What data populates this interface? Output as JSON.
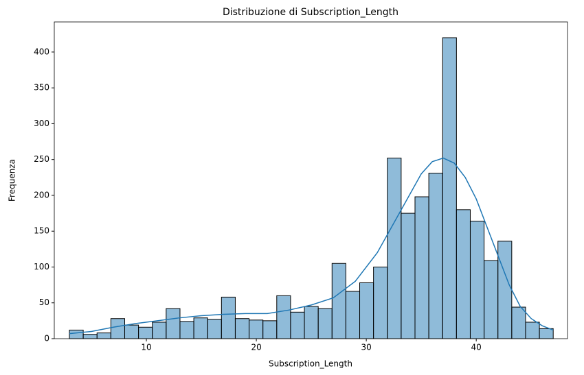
{
  "chart_data": {
    "type": "histogram",
    "title": "Distribuzione di Subscription_Length",
    "xlabel": "Subscription_Length",
    "ylabel": "Frequenza",
    "bins": [
      3,
      4.257,
      5.514,
      6.771,
      8.029,
      9.286,
      10.543,
      11.8,
      13.057,
      14.314,
      15.571,
      16.829,
      18.086,
      19.343,
      20.6,
      21.857,
      23.114,
      24.371,
      25.629,
      26.886,
      28.143,
      29.4,
      30.657,
      31.914,
      33.171,
      34.429,
      35.686,
      36.943,
      38.2,
      39.457,
      40.714,
      41.971,
      43.229,
      44.486,
      45.743,
      47
    ],
    "values": [
      12,
      6,
      8,
      28,
      19,
      16,
      23,
      42,
      24,
      29,
      27,
      58,
      28,
      26,
      25,
      60,
      37,
      45,
      42,
      105,
      66,
      78,
      100,
      252,
      175,
      198,
      231,
      420,
      180,
      164,
      109,
      136,
      44,
      23,
      14
    ],
    "color": "#1f77b4",
    "kde": {
      "x": [
        3,
        5,
        7,
        9,
        11,
        13,
        15,
        17,
        19,
        21,
        23,
        25,
        27,
        29,
        31,
        33,
        35,
        36,
        37,
        38,
        39,
        40,
        41,
        42,
        43,
        44,
        45,
        46,
        47
      ],
      "values": [
        7,
        10,
        16,
        21,
        25,
        29,
        32,
        34,
        35,
        35,
        40,
        47,
        57,
        80,
        120,
        175,
        230,
        247,
        252,
        245,
        225,
        195,
        155,
        115,
        75,
        45,
        28,
        18,
        12
      ],
      "color": "#1f77b4"
    },
    "xlim": [
      1.625,
      48.3
    ],
    "ylim": [
      0,
      442
    ],
    "xticks": [
      10,
      20,
      30,
      40
    ],
    "yticks": [
      0,
      50,
      100,
      150,
      200,
      250,
      300,
      350,
      400
    ]
  }
}
